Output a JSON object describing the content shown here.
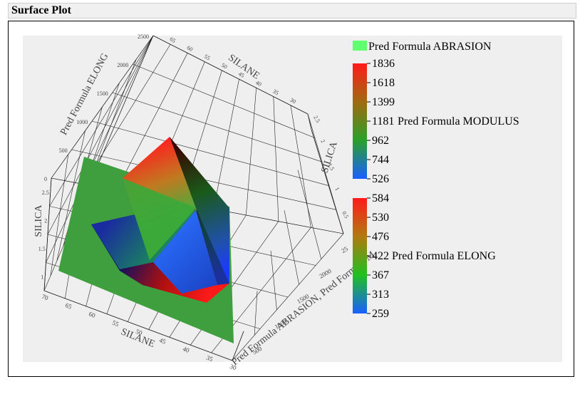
{
  "window": {
    "title": "Surface Plot"
  },
  "chart_data": {
    "type": "surface3d",
    "axes": {
      "x": {
        "label": "SILANE",
        "ticks": [
          "70",
          "65",
          "60",
          "55",
          "50",
          "45",
          "40",
          "35",
          "30"
        ]
      },
      "y": {
        "label": "SILICA",
        "ticks": [
          "1",
          "1.5",
          "2",
          "2.5"
        ]
      },
      "z_left": {
        "label": "Pred Formula ELONG",
        "ticks": [
          "0",
          "500",
          "1000",
          "1500",
          "2000",
          "2500"
        ]
      },
      "z_right": {
        "label": "Pred Formula ABRASION, Pred Formula M",
        "ticks": [
          "500",
          "1000",
          "1500",
          "2000",
          "25"
        ]
      },
      "back_x": {
        "label": "SILANE",
        "ticks": [
          "65",
          "60",
          "55",
          "50",
          "45",
          "40",
          "35",
          "30"
        ]
      },
      "back_y": {
        "label": "SILICA",
        "ticks": [
          "2.5",
          "2",
          "1.5",
          "1",
          "0.5"
        ]
      }
    },
    "series": [
      {
        "name": "Pred Formula ABRASION",
        "color": "#60ff70",
        "coloring": "solid"
      },
      {
        "name": "Pred Formula MODULUS",
        "coloring": "gradient",
        "scale": [
          1836,
          1618,
          1399,
          1181,
          962,
          744,
          526
        ],
        "colors": [
          "#ff1a1a",
          "#a06a10",
          "#2aa02a",
          "#1a5fff"
        ]
      },
      {
        "name": "Pred Formula ELONG",
        "coloring": "gradient",
        "scale": [
          584,
          530,
          476,
          422,
          367,
          313,
          259
        ],
        "colors": [
          "#ff1a1a",
          "#b07a10",
          "#20c020",
          "#1a5fff"
        ]
      }
    ]
  }
}
